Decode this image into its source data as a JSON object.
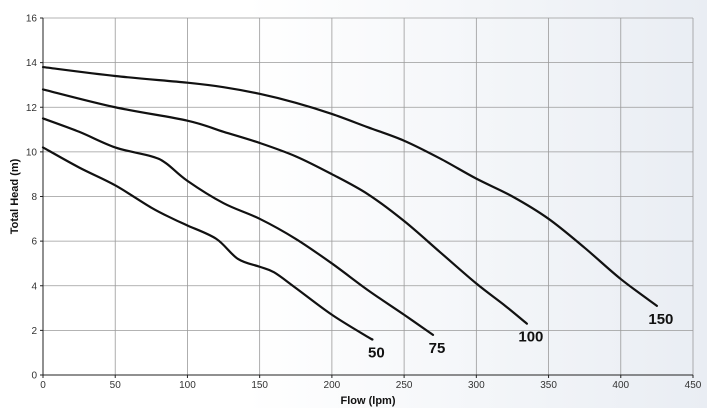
{
  "chart_data": {
    "type": "line",
    "xlabel": "Flow (lpm)",
    "ylabel": "Total Head (m)",
    "xlim": [
      0,
      450
    ],
    "ylim": [
      0,
      16
    ],
    "xticks": [
      "0",
      "50",
      "100",
      "150",
      "200",
      "250",
      "300",
      "350",
      "400",
      "450"
    ],
    "yticks": [
      "0",
      "2",
      "4",
      "6",
      "8",
      "10",
      "12",
      "14",
      "16"
    ],
    "grid": true,
    "series": [
      {
        "name": "50",
        "x": [
          0,
          25,
          50,
          75,
          90,
          100,
          120,
          135,
          150,
          160,
          175,
          200,
          225,
          228
        ],
        "y": [
          10.2,
          9.3,
          8.5,
          7.5,
          7.0,
          6.7,
          6.1,
          5.2,
          4.85,
          4.6,
          3.9,
          2.7,
          1.7,
          1.6
        ]
      },
      {
        "name": "75",
        "x": [
          0,
          25,
          50,
          75,
          85,
          100,
          125,
          150,
          175,
          200,
          225,
          250,
          270
        ],
        "y": [
          11.5,
          10.9,
          10.2,
          9.8,
          9.5,
          8.7,
          7.7,
          7.0,
          6.1,
          5.0,
          3.8,
          2.7,
          1.8
        ]
      },
      {
        "name": "100",
        "x": [
          0,
          50,
          100,
          125,
          150,
          175,
          200,
          225,
          250,
          275,
          300,
          320,
          335
        ],
        "y": [
          12.8,
          12.0,
          11.4,
          10.9,
          10.4,
          9.8,
          9.0,
          8.1,
          6.9,
          5.5,
          4.1,
          3.1,
          2.3
        ]
      },
      {
        "name": "150",
        "x": [
          0,
          50,
          100,
          125,
          150,
          175,
          200,
          225,
          250,
          275,
          300,
          325,
          350,
          375,
          400,
          425
        ],
        "y": [
          13.8,
          13.4,
          13.1,
          12.9,
          12.6,
          12.2,
          11.7,
          11.1,
          10.5,
          9.7,
          8.8,
          8.0,
          7.0,
          5.7,
          4.3,
          3.1
        ]
      }
    ]
  }
}
